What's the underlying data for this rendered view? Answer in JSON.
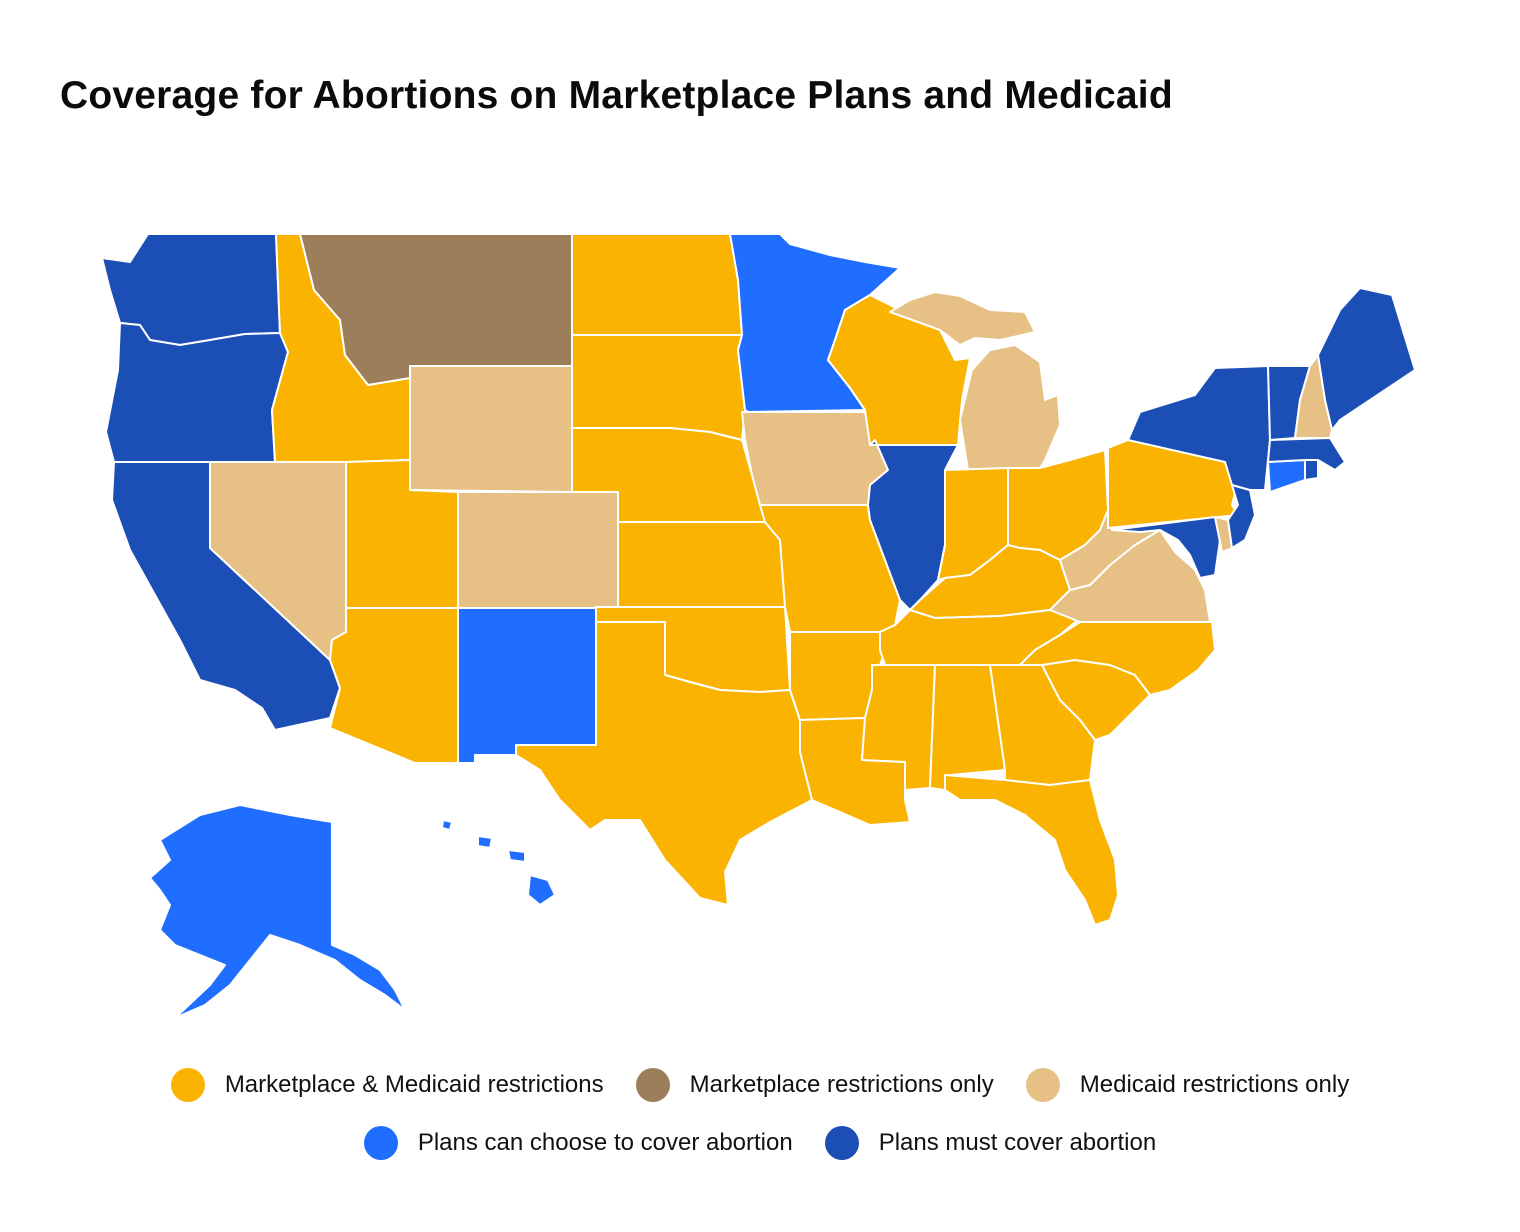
{
  "title": "Coverage for Abortions on Marketplace Plans and Medicaid",
  "colors": {
    "mm": "#F9B300",
    "mp": "#9C7F5A",
    "md": "#E6C084",
    "choose": "#1F6EFF",
    "must": "#1B4FB5"
  },
  "legend": [
    {
      "key": "mm",
      "label": "Marketplace & Medicaid restrictions"
    },
    {
      "key": "mp",
      "label": "Marketplace restrictions only"
    },
    {
      "key": "md",
      "label": "Medicaid restrictions only"
    },
    {
      "key": "choose",
      "label": "Plans can choose to cover abortion"
    },
    {
      "key": "must",
      "label": "Plans must cover abortion"
    }
  ],
  "states": {
    "WA": "must",
    "OR": "must",
    "CA": "must",
    "ID": "mm",
    "NV": "md",
    "MT": "mp",
    "WY": "md",
    "UT": "mm",
    "CO": "md",
    "AZ": "mm",
    "NM": "choose",
    "ND": "mm",
    "SD": "mm",
    "NE": "mm",
    "KS": "mm",
    "OK": "mm",
    "TX": "mm",
    "MN": "choose",
    "IA": "md",
    "MO": "mm",
    "AR": "mm",
    "LA": "mm",
    "WI": "mm",
    "IL": "must",
    "MI": "md",
    "IN": "mm",
    "OH": "mm",
    "KY": "mm",
    "TN": "mm",
    "MS": "mm",
    "AL": "mm",
    "GA": "mm",
    "FL": "mm",
    "SC": "mm",
    "NC": "mm",
    "VA": "md",
    "WV": "md",
    "PA": "mm",
    "NY": "must",
    "NJ": "must",
    "DE": "md",
    "MD": "must",
    "CT": "choose",
    "RI": "must",
    "MA": "must",
    "VT": "must",
    "NH": "md",
    "ME": "must",
    "AK": "choose",
    "HI": "choose"
  }
}
